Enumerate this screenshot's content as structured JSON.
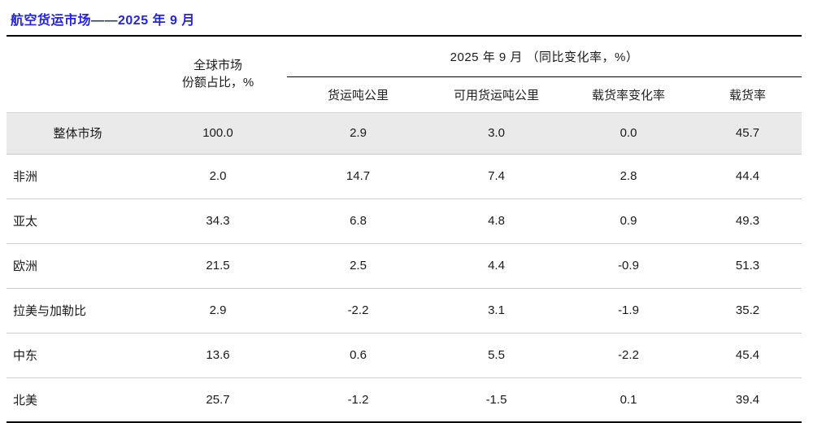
{
  "title": "航空货运市场——2025 年 9 月",
  "table": {
    "share_header_line1": "全球市场",
    "share_header_line2": "份额占比，%",
    "group_header": "2025 年 9 月 （同比变化率，%）",
    "sub_headers": {
      "ctk": "货运吨公里",
      "actk": "可用货运吨公里",
      "clf_change": "载货率变化率",
      "clf": "载货率"
    },
    "rows": [
      {
        "region": "整体市场",
        "values": [
          "100.0",
          "2.9",
          "3.0",
          "0.0",
          "45.7"
        ]
      },
      {
        "region": "非洲",
        "values": [
          "2.0",
          "14.7",
          "7.4",
          "2.8",
          "44.4"
        ]
      },
      {
        "region": "亚太",
        "values": [
          "34.3",
          "6.8",
          "4.8",
          "0.9",
          "49.3"
        ]
      },
      {
        "region": "欧洲",
        "values": [
          "21.5",
          "2.5",
          "4.4",
          "-0.9",
          "51.3"
        ]
      },
      {
        "region": "拉美与加勒比",
        "values": [
          "2.9",
          "-2.2",
          "3.1",
          "-1.9",
          "35.2"
        ]
      },
      {
        "region": "中东",
        "values": [
          "13.6",
          "0.6",
          "5.5",
          "-2.2",
          "45.4"
        ]
      },
      {
        "region": "北美",
        "values": [
          "25.7",
          "-1.2",
          "-1.5",
          "0.1",
          "39.4"
        ]
      }
    ]
  },
  "colors": {
    "title_blue": "#2424e0",
    "highlight_row_bg": "#eaeaea",
    "rule_black": "#000000",
    "row_separator": "#cfcfcf"
  }
}
